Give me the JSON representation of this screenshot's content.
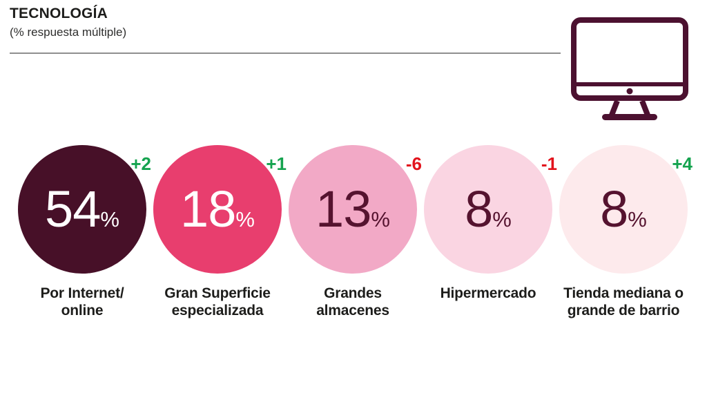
{
  "header": {
    "title": "TECNOLOGÍA",
    "subtitle": "(% respuesta múltiple)"
  },
  "monitor_icon": {
    "name": "desktop-monitor-icon",
    "color": "#4c1130"
  },
  "colors": {
    "positive_change": "#15a34f",
    "negative_change": "#e2131c",
    "divider": "#8f8f8f",
    "label_text": "#1d1d1b"
  },
  "chart_data": {
    "type": "bubble",
    "title": "TECNOLOGÍA",
    "subtitle": "(% respuesta múltiple)",
    "unit": "%",
    "percent_sign": "%",
    "legend_position": "none",
    "value_range": [
      0,
      100
    ],
    "series": [
      {
        "label": "Por Internet/ online",
        "label_lines": [
          "Por Internet/",
          "online"
        ],
        "value": 54,
        "change": "+2",
        "change_direction": "up",
        "circle_color": "#471028",
        "value_color": "#ffffff"
      },
      {
        "label": "Gran Superficie especializada",
        "label_lines": [
          "Gran Superficie",
          "especializada"
        ],
        "value": 18,
        "change": "+1",
        "change_direction": "up",
        "circle_color": "#e83e6e",
        "value_color": "#ffffff"
      },
      {
        "label": "Grandes almacenes",
        "label_lines": [
          "Grandes",
          "almacenes"
        ],
        "value": 13,
        "change": "-6",
        "change_direction": "down",
        "circle_color": "#f2a9c6",
        "value_color": "#55132f"
      },
      {
        "label": "Hipermercado",
        "label_lines": [
          "Hipermercado"
        ],
        "value": 8,
        "change": "-1",
        "change_direction": "down",
        "circle_color": "#fad5e2",
        "value_color": "#55132f"
      },
      {
        "label": "Tienda mediana o grande de barrio",
        "label_lines": [
          "Tienda mediana o",
          "grande de barrio"
        ],
        "value": 8,
        "change": "+4",
        "change_direction": "up",
        "circle_color": "#fdeaec",
        "value_color": "#55132f"
      }
    ]
  }
}
